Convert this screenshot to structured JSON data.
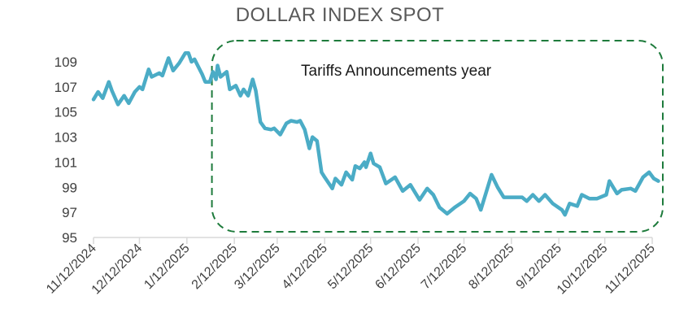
{
  "chart_data": {
    "type": "line",
    "title": "DOLLAR INDEX SPOT",
    "xlabel": "",
    "ylabel": "",
    "x_unit": "days since 11/12/2024",
    "xlim": [
      0,
      365
    ],
    "ylim": [
      95,
      110
    ],
    "yticks": [
      95,
      97,
      99,
      101,
      103,
      105,
      107,
      109
    ],
    "xtick_labels": [
      "11/12/2024",
      "12/12/2024",
      "1/12/2025",
      "2/12/2025",
      "3/12/2025",
      "4/12/2025",
      "5/12/2025",
      "6/12/2025",
      "7/12/2025",
      "8/12/2025",
      "9/12/2025",
      "10/12/2025",
      "11/12/2025"
    ],
    "xtick_days": [
      0,
      30,
      61,
      92,
      120,
      151,
      181,
      212,
      242,
      273,
      304,
      334,
      365
    ],
    "grid": false,
    "legend": "none",
    "line_color": "#4bacc6",
    "annotation": {
      "text": "Tariffs Announcements year",
      "start_day": 80,
      "end_day": 365,
      "box_color": "#1e7b3c"
    },
    "series": [
      {
        "name": "Dollar Index Spot",
        "x": [
          0,
          3,
          6,
          10,
          12,
          16,
          20,
          23,
          27,
          30,
          32,
          36,
          38,
          43,
          45,
          49,
          52,
          56,
          60,
          62,
          64,
          66,
          71,
          73,
          76,
          78,
          80,
          81,
          83,
          87,
          89,
          93,
          96,
          98,
          101,
          104,
          106,
          109,
          112,
          116,
          118,
          122,
          126,
          129,
          133,
          135,
          138,
          141,
          143,
          146,
          149,
          151,
          156,
          158,
          162,
          165,
          169,
          171,
          174,
          177,
          178,
          181,
          183,
          187,
          191,
          197,
          202,
          207,
          213,
          218,
          222,
          226,
          231,
          236,
          242,
          246,
          250,
          253,
          260,
          264,
          268,
          274,
          280,
          283,
          287,
          291,
          295,
          300,
          306,
          308,
          311,
          316,
          319,
          324,
          329,
          335,
          337,
          342,
          345,
          351,
          354,
          359,
          363,
          366,
          369
        ],
        "values": [
          106.0,
          106.6,
          106.1,
          107.4,
          106.7,
          105.6,
          106.3,
          105.7,
          106.6,
          107.0,
          106.8,
          108.4,
          107.8,
          108.1,
          107.9,
          109.3,
          108.3,
          108.9,
          109.7,
          109.7,
          109.0,
          109.2,
          108.0,
          107.4,
          107.4,
          108.2,
          107.6,
          108.7,
          107.8,
          108.2,
          106.8,
          107.1,
          106.3,
          106.8,
          106.3,
          107.6,
          106.7,
          104.2,
          103.7,
          103.6,
          103.7,
          103.2,
          104.1,
          104.3,
          104.2,
          104.3,
          103.6,
          102.1,
          103.0,
          102.7,
          100.2,
          99.8,
          98.9,
          99.7,
          99.2,
          100.2,
          99.6,
          100.7,
          100.5,
          101.0,
          100.6,
          101.7,
          100.9,
          100.6,
          99.3,
          99.8,
          98.7,
          99.2,
          98.0,
          98.9,
          98.4,
          97.4,
          96.9,
          97.4,
          97.9,
          98.5,
          98.1,
          97.2,
          100.0,
          99.0,
          98.2,
          98.2,
          98.2,
          97.9,
          98.4,
          97.9,
          98.4,
          97.7,
          97.2,
          96.8,
          97.7,
          97.5,
          98.4,
          98.1,
          98.1,
          98.4,
          99.5,
          98.5,
          98.8,
          98.9,
          98.7,
          99.8,
          100.2,
          99.7,
          99.5
        ]
      }
    ]
  }
}
